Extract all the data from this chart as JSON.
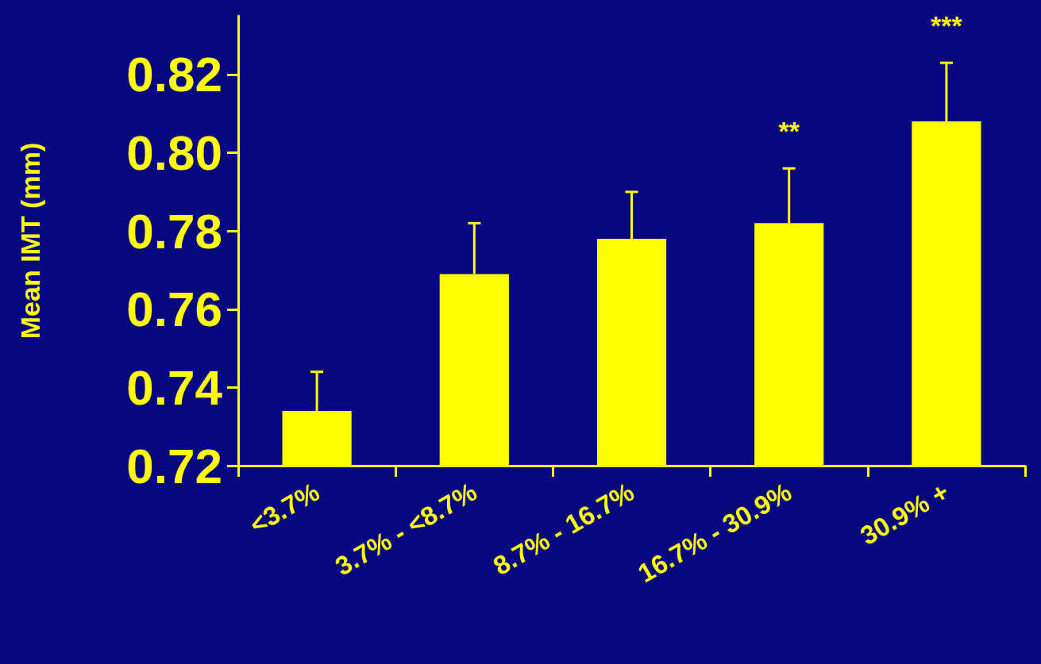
{
  "chart_data": {
    "type": "bar",
    "ylabel": "Mean IMT (mm)",
    "categories": [
      "<3.7%",
      "3.7% - <8.7%",
      "8.7% - 16.7%",
      "16.7% - 30.9%",
      "30.9% +"
    ],
    "values": [
      0.734,
      0.769,
      0.778,
      0.782,
      0.808
    ],
    "errors": [
      [
        0.734,
        0.744
      ],
      [
        0.769,
        0.782
      ],
      [
        0.778,
        0.79
      ],
      [
        0.782,
        0.796
      ],
      [
        0.808,
        0.823
      ]
    ],
    "color": "#ffff00",
    "ylim": [
      0.72,
      0.835
    ],
    "yticks": [
      0.72,
      0.74,
      0.76,
      0.78,
      {
        "value": 0.8,
        "label": "0.80"
      },
      0.82
    ],
    "grid": false,
    "annotations": [
      "**",
      "***"
    ]
  }
}
